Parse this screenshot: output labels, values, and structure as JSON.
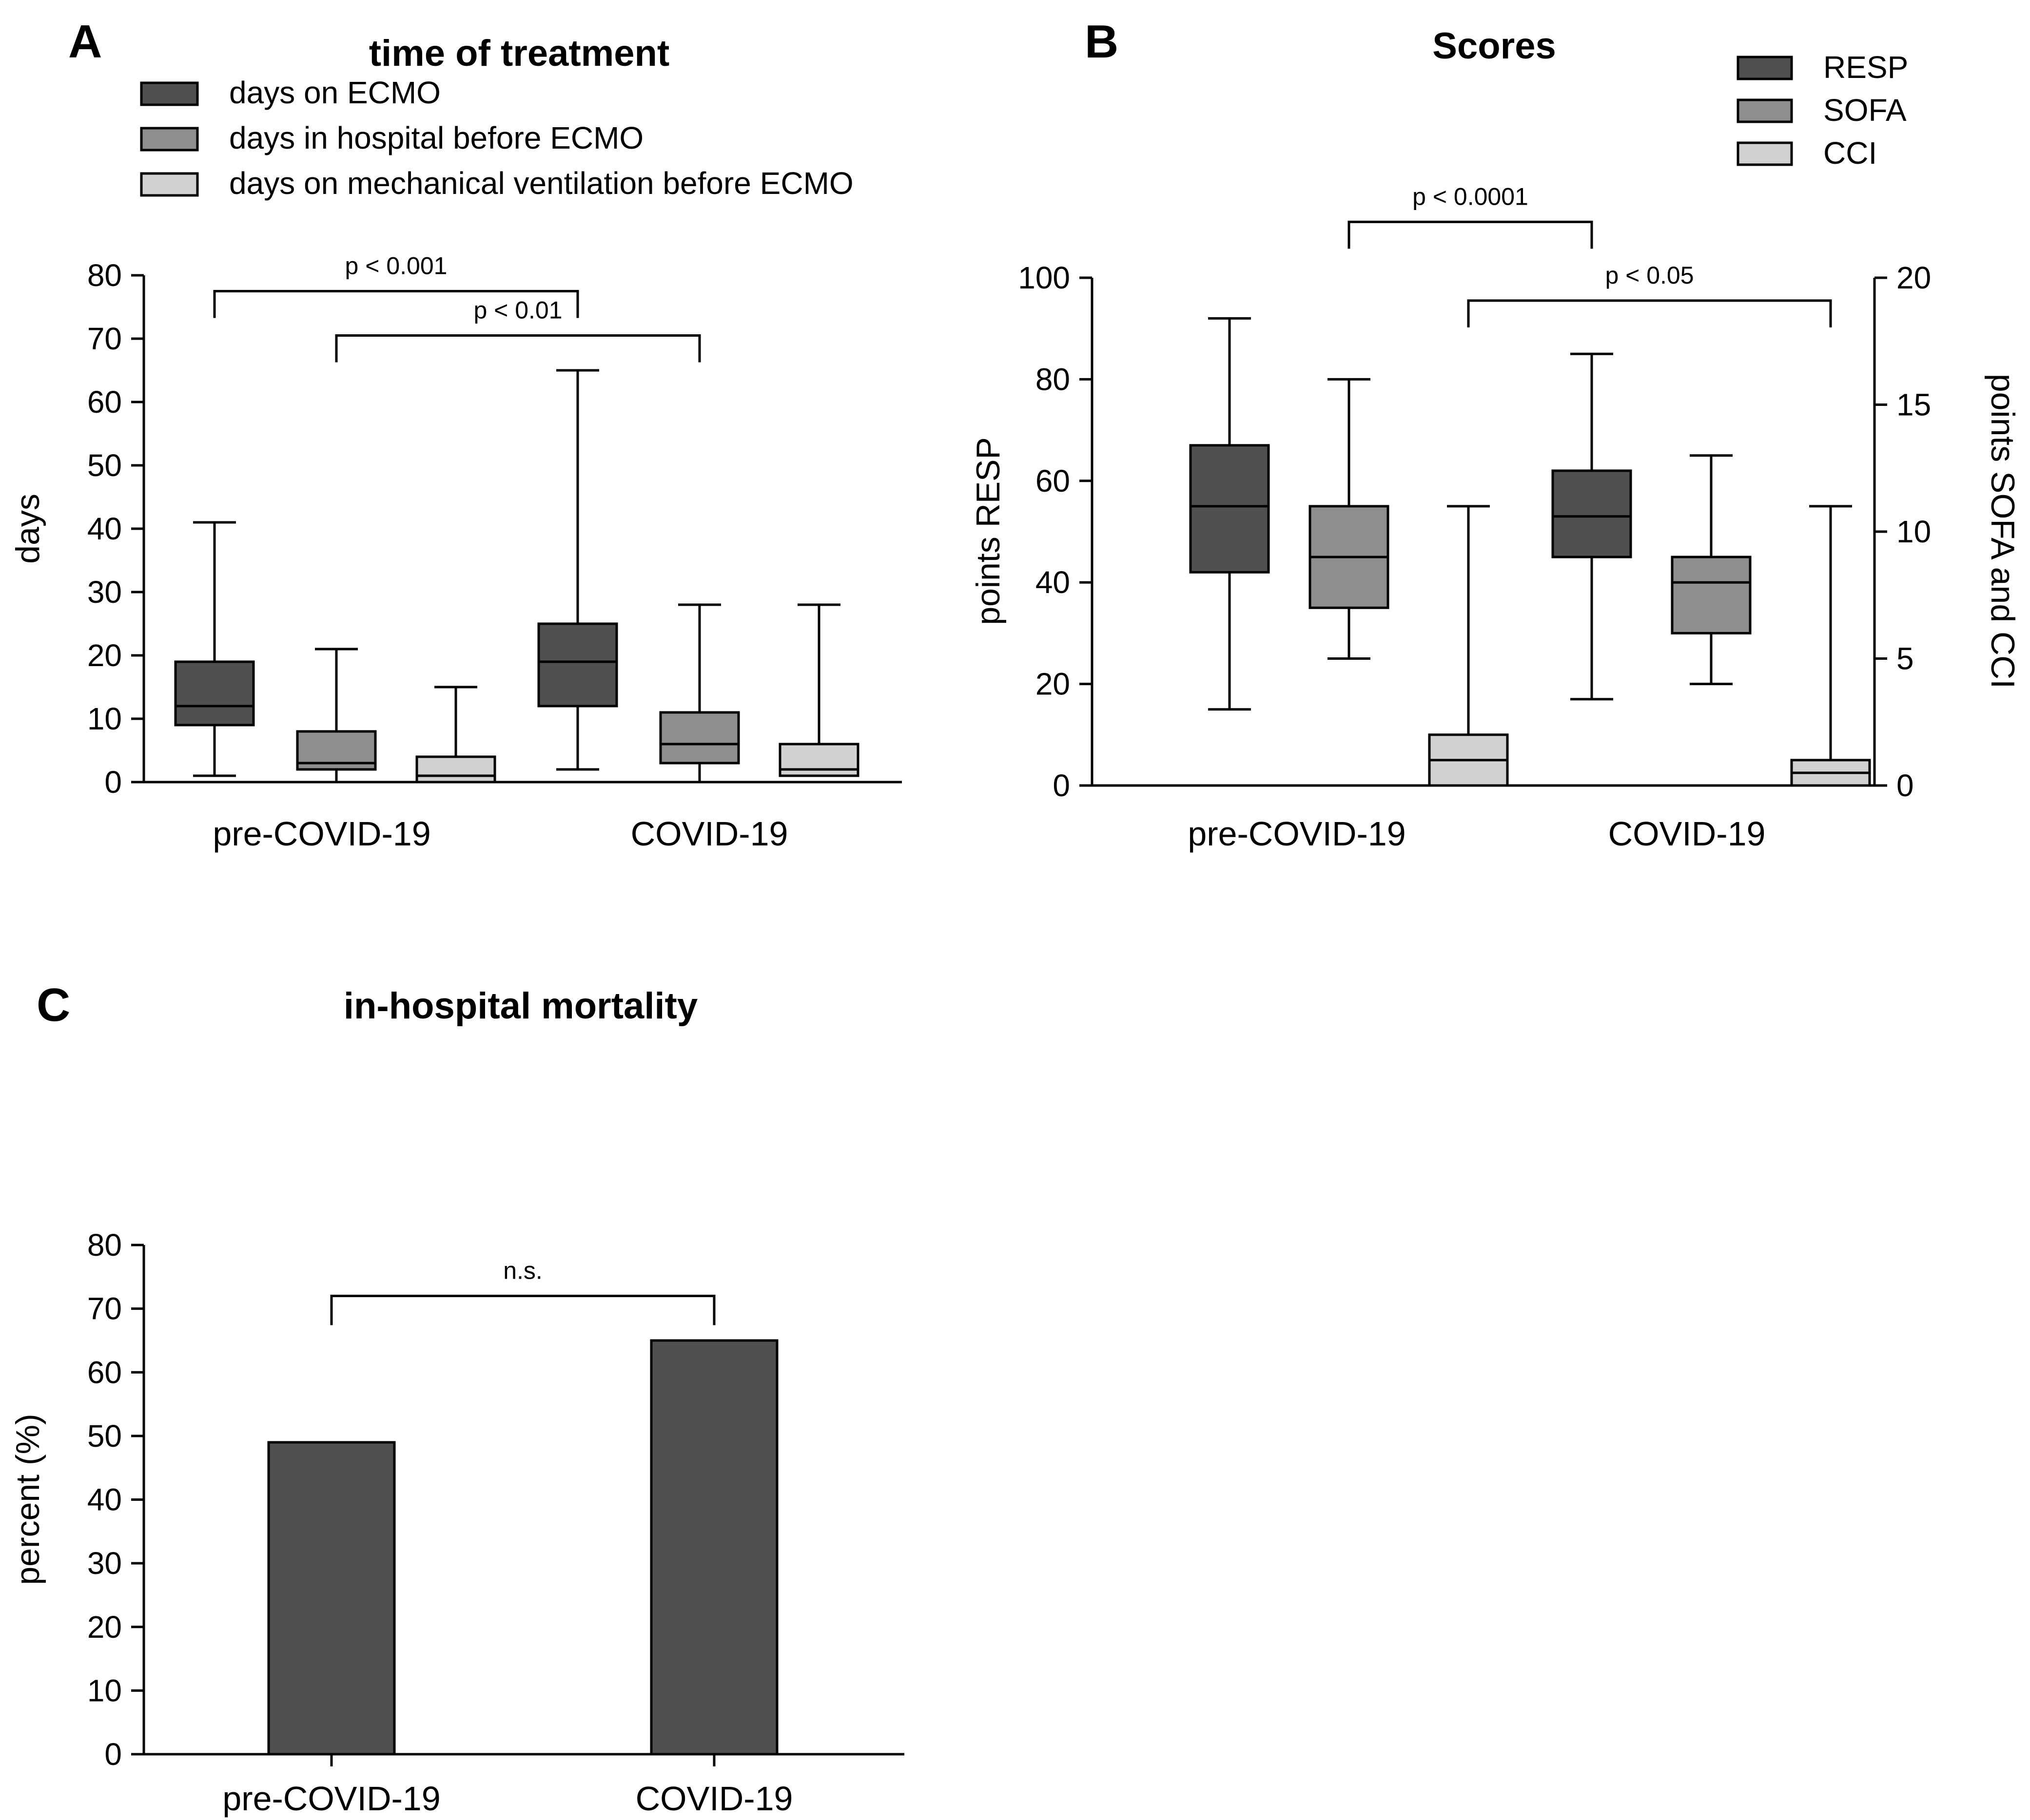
{
  "colors": {
    "dark": "#505050",
    "mid": "#8e8e8e",
    "light": "#d2d2d2",
    "ink": "#000000"
  },
  "chart_data": [
    {
      "panel": "A",
      "type": "box",
      "title": "time of treatment",
      "ylabel": "days",
      "ylim": [
        0,
        80
      ],
      "yticks": [
        "0",
        "10",
        "20",
        "30",
        "40",
        "50",
        "60",
        "70",
        "80"
      ],
      "categories": [
        "pre-COVID-19",
        "COVID-19"
      ],
      "series": [
        {
          "name": "days on ECMO",
          "color": "dark",
          "boxes": [
            {
              "min": 1,
              "q1": 9,
              "median": 12,
              "q3": 19,
              "max": 41
            },
            {
              "min": 2,
              "q1": 12,
              "median": 19,
              "q3": 25,
              "max": 65
            }
          ]
        },
        {
          "name": "days in hospital before ECMO",
          "color": "mid",
          "boxes": [
            {
              "min": 0,
              "q1": 2,
              "median": 3,
              "q3": 8,
              "max": 21
            },
            {
              "min": 0,
              "q1": 3,
              "median": 6,
              "q3": 11,
              "max": 28
            }
          ]
        },
        {
          "name": "days on mechanical ventilation before ECMO",
          "color": "light",
          "boxes": [
            {
              "min": 0,
              "q1": 0,
              "median": 1,
              "q3": 4,
              "max": 15
            },
            {
              "min": 1,
              "q1": 1,
              "median": 2,
              "q3": 6,
              "max": 28
            }
          ]
        }
      ],
      "brackets": [
        {
          "label": "p < 0.001",
          "from": [
            0,
            0
          ],
          "to": [
            1,
            0
          ],
          "y": 77.5
        },
        {
          "label": "p < 0.01",
          "from": [
            0,
            1
          ],
          "to": [
            1,
            1
          ],
          "y": 70.5
        }
      ]
    },
    {
      "panel": "B",
      "type": "box",
      "title": "Scores",
      "ylabel": "points RESP",
      "y2label": "points SOFA and CCI",
      "ylim": [
        0,
        100
      ],
      "y2lim": [
        0,
        20
      ],
      "yticks": [
        "0",
        "20",
        "40",
        "60",
        "80",
        "100"
      ],
      "y2ticks": [
        "0",
        "5",
        "10",
        "15",
        "20"
      ],
      "categories": [
        "pre-COVID-19",
        "COVID-19"
      ],
      "series": [
        {
          "name": "RESP",
          "color": "dark",
          "axis": "left",
          "boxes": [
            {
              "min": 15,
              "q1": 42,
              "median": 55,
              "q3": 67,
              "max": 92
            },
            {
              "min": 17,
              "q1": 45,
              "median": 53,
              "q3": 62,
              "max": 85
            }
          ]
        },
        {
          "name": "SOFA",
          "color": "mid",
          "axis": "right",
          "boxes": [
            {
              "min": 5,
              "q1": 7,
              "median": 9,
              "q3": 11,
              "max": 16
            },
            {
              "min": 4,
              "q1": 6,
              "median": 8,
              "q3": 9,
              "max": 13
            }
          ]
        },
        {
          "name": "CCI",
          "color": "light",
          "axis": "right",
          "boxes": [
            {
              "min": 0,
              "q1": 0,
              "median": 1,
              "q3": 2,
              "max": 11
            },
            {
              "min": 0,
              "q1": 0,
              "median": 0.5,
              "q3": 1,
              "max": 11
            }
          ]
        }
      ],
      "brackets": [
        {
          "label": "p < 0.0001",
          "from": [
            0,
            1
          ],
          "to": [
            1,
            0
          ],
          "y": 111
        },
        {
          "label": "p < 0.05",
          "from": [
            0,
            2
          ],
          "to": [
            1,
            2
          ],
          "y": 95.5
        }
      ]
    },
    {
      "panel": "C",
      "type": "bar",
      "title": "in-hospital mortality",
      "ylabel": "percent (%)",
      "ylim": [
        0,
        80
      ],
      "yticks": [
        "0",
        "10",
        "20",
        "30",
        "40",
        "50",
        "60",
        "70",
        "80"
      ],
      "categories": [
        "pre-COVID-19",
        "COVID-19"
      ],
      "values": [
        49,
        65
      ],
      "color": "dark",
      "brackets": [
        {
          "label": "n.s.",
          "from": [
            0
          ],
          "to": [
            1
          ],
          "y": 72
        }
      ]
    }
  ]
}
